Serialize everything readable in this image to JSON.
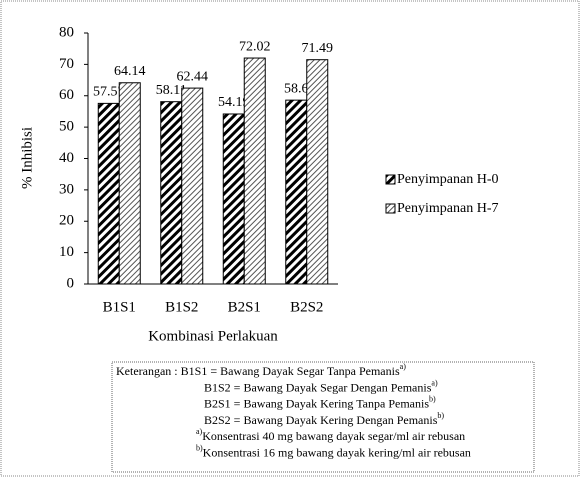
{
  "chart_data": {
    "type": "bar",
    "categories": [
      "B1S1",
      "B1S2",
      "B2S1",
      "B2S2"
    ],
    "series": [
      {
        "name": "Penyimpanan H-0",
        "color": "#000000",
        "hatch": "dense",
        "values": [
          57.57,
          58.11,
          54.19,
          58.6
        ]
      },
      {
        "name": "Penyimpanan H-7",
        "color": "#000000",
        "hatch": "light",
        "values": [
          64.14,
          62.44,
          72.02,
          71.49
        ]
      }
    ],
    "ylabel": "% Inhibisi",
    "xlabel": "Kombinasi Perlakuan",
    "ylim": [
      0,
      80
    ],
    "yticks": [
      0,
      10,
      20,
      30,
      40,
      50,
      60,
      70,
      80
    ],
    "data_labels": true,
    "legend": "right",
    "notes": [
      {
        "text": "Keterangan : B1S1 = Bawang Dayak Segar Tanpa Pemanis",
        "sup": "a)",
        "sup_position": "end"
      },
      {
        "text": "B1S2 = Bawang Dayak Segar Dengan Pemanis",
        "sup": "a)",
        "sup_position": "end"
      },
      {
        "text": "B2S1 = Bawang Dayak Kering Tanpa Pemanis",
        "sup": "b)",
        "sup_position": "end"
      },
      {
        "text": "B2S2 = Bawang Dayak Kering Dengan Pemanis",
        "sup": "b)",
        "sup_position": "end"
      },
      {
        "text": "Konsentrasi 40 mg bawang dayak segar/ml air rebusan",
        "sup": "a)",
        "sup_position": "start"
      },
      {
        "text": "Konsentrasi 16 mg bawang dayak kering/ml air rebusan",
        "sup": "b)",
        "sup_position": "start"
      }
    ]
  }
}
